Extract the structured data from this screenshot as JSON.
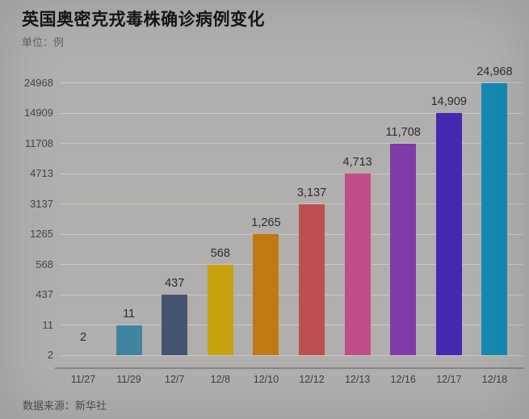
{
  "chart_data": {
    "type": "bar",
    "title": "英国奥密克戎毒株确诊病例变化",
    "unit_label": "单位：例",
    "source": "数据来源：新华社",
    "categories": [
      "11/27",
      "11/29",
      "12/7",
      "12/8",
      "12/10",
      "12/12",
      "12/13",
      "12/16",
      "12/17",
      "12/18"
    ],
    "values": [
      2,
      11,
      437,
      568,
      1265,
      3137,
      4713,
      11708,
      14909,
      24968
    ],
    "value_labels": [
      "2",
      "11",
      "437",
      "568",
      "1,265",
      "3,137",
      "4,713",
      "11,708",
      "14,909",
      "24,968"
    ],
    "y_axis_ticks": [
      "2",
      "11",
      "437",
      "568",
      "1265",
      "3137",
      "4713",
      "11708",
      "14909",
      "24968"
    ],
    "bar_colors": [
      "#41849f",
      "#41849f",
      "#475470",
      "#c6a30e",
      "#bf7a12",
      "#bf4e53",
      "#c04d87",
      "#7f3ba7",
      "#4429b0",
      "#1689b2"
    ],
    "xlabel": "",
    "ylabel": "单位：例",
    "scale": "ordinal-rank-equal-steps",
    "grid": "faint horizontal line at each y tick",
    "legend": "none",
    "background_color": "#b0afad",
    "axis_line_color": "#868686"
  }
}
